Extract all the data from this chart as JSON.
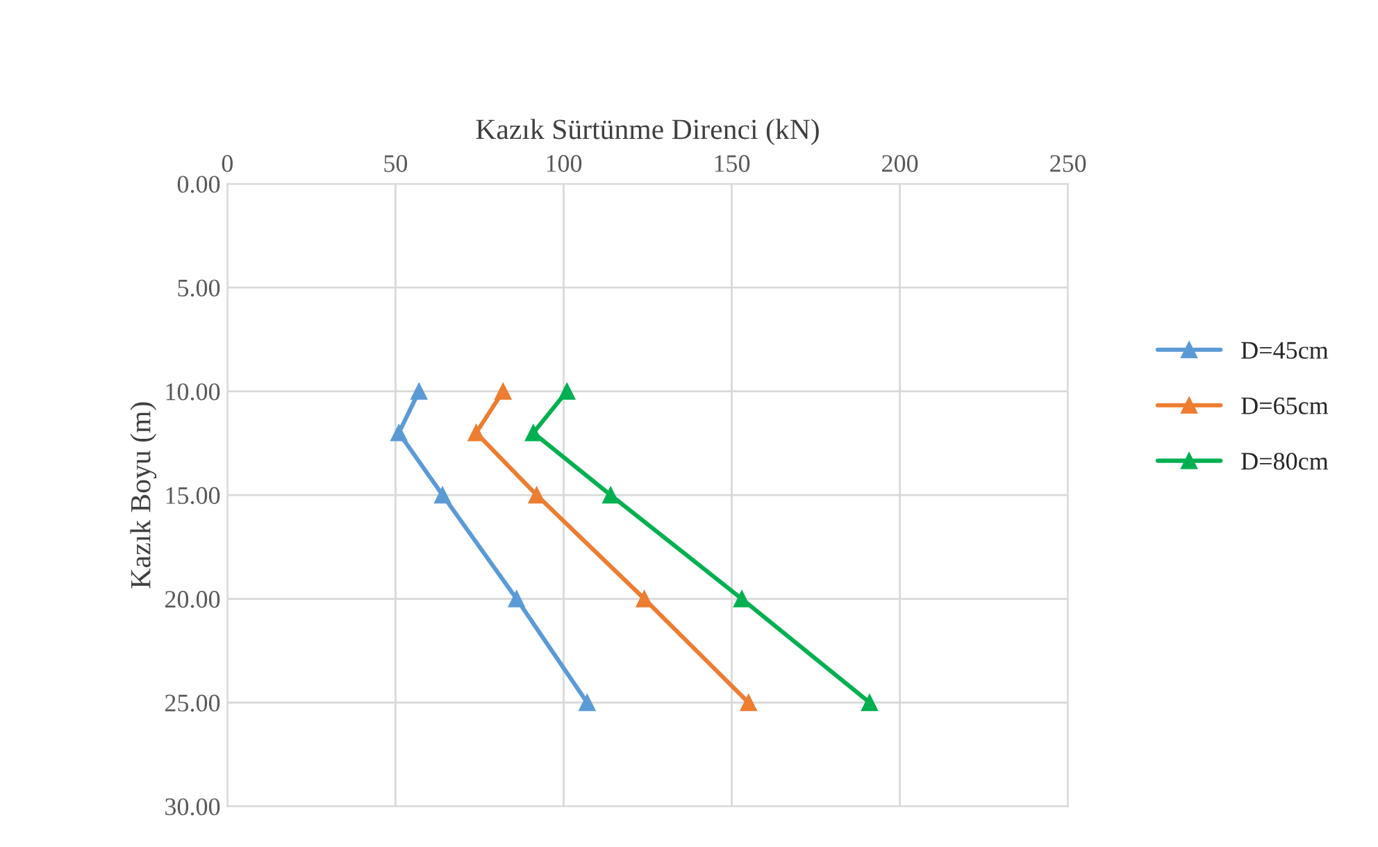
{
  "chart_data": {
    "type": "line",
    "xlabel": "Kazık Sürtünme Direnci (kN)",
    "ylabel": "Kazık Boyu (m)",
    "xlim": [
      0,
      250
    ],
    "xticks": [
      0,
      50,
      100,
      150,
      200,
      250
    ],
    "ylim": [
      30,
      0
    ],
    "yticks": [
      {
        "value": 0,
        "label": "0.00"
      },
      {
        "value": 5,
        "label": "5.00"
      },
      {
        "value": 10,
        "label": "10.00"
      },
      {
        "value": 15,
        "label": "15.00"
      },
      {
        "value": 20,
        "label": "20.00"
      },
      {
        "value": 25,
        "label": "25.00"
      },
      {
        "value": 30,
        "label": "30.00"
      }
    ],
    "grid": true,
    "legend": "right",
    "marker": "triangle",
    "line_style": "solid",
    "series": [
      {
        "name": "D=45cm",
        "color": "#5b9bd5",
        "x": [
          57,
          51,
          64,
          86,
          107
        ],
        "values": [
          10,
          12,
          15,
          20,
          25
        ]
      },
      {
        "name": "D=65cm",
        "color": "#ed7d31",
        "x": [
          82,
          74,
          92,
          124,
          155
        ],
        "values": [
          10,
          12,
          15,
          20,
          25
        ]
      },
      {
        "name": "D=80cm",
        "color": "#00b050",
        "x": [
          101,
          91,
          114,
          153,
          191
        ],
        "values": [
          10,
          12,
          15,
          20,
          25
        ]
      }
    ]
  }
}
